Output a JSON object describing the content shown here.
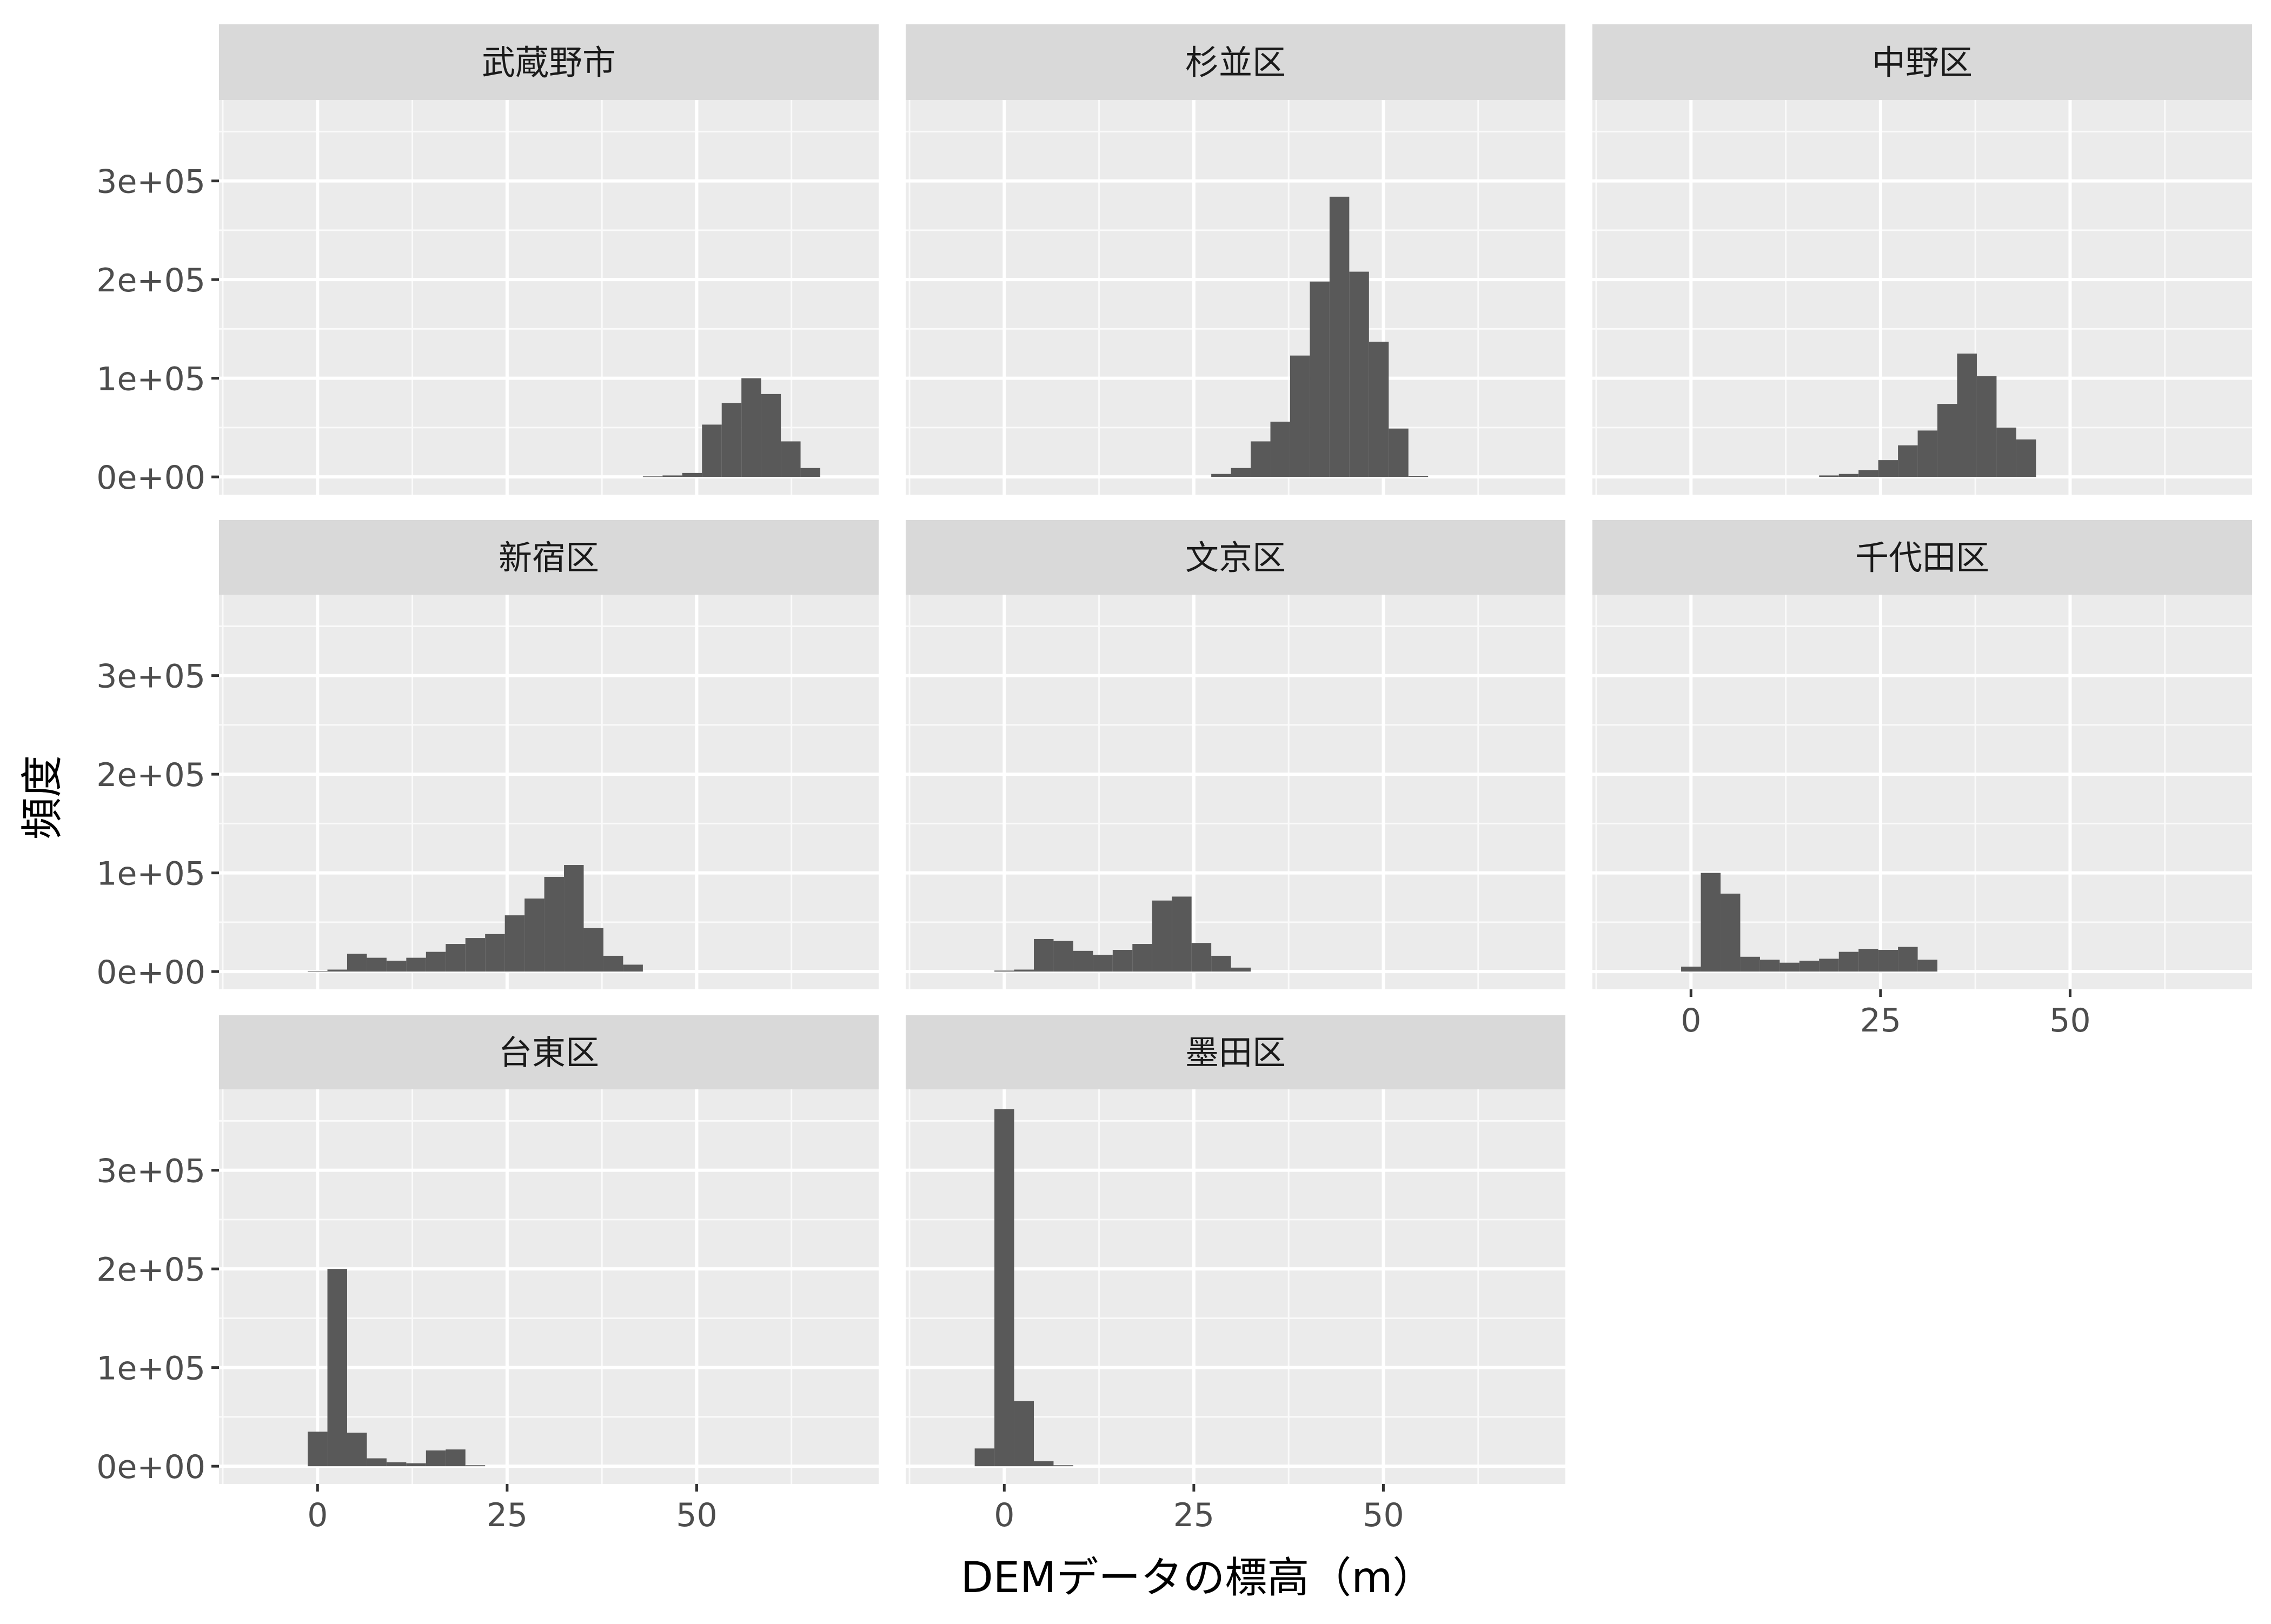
{
  "chart_data": {
    "type": "bar",
    "chart_kind": "histogram (faceted)",
    "xlabel": "DEMデータの標高（m）",
    "ylabel": "頻度",
    "xlim": [
      -13,
      74
    ],
    "ylim": [
      -18000,
      382000
    ],
    "x_ticks": [
      0,
      25,
      50
    ],
    "x_tick_labels": [
      "0",
      "25",
      "50"
    ],
    "y_ticks": [
      0,
      100000,
      200000,
      300000
    ],
    "y_tick_labels": [
      "0e+00",
      "1e+05",
      "2e+05",
      "3e+05"
    ],
    "bin_width": 2.6,
    "bar_color": "#595959",
    "panel_background": "#ebebeb",
    "strip_background": "#d9d9d9",
    "grid": true,
    "facets": [
      {
        "title": "武蔵野市",
        "bins": [
          {
            "x": 44.2,
            "y": 500
          },
          {
            "x": 46.8,
            "y": 1500
          },
          {
            "x": 49.4,
            "y": 4000
          },
          {
            "x": 52.0,
            "y": 53000
          },
          {
            "x": 54.6,
            "y": 75000
          },
          {
            "x": 57.2,
            "y": 100000
          },
          {
            "x": 59.8,
            "y": 84000
          },
          {
            "x": 62.4,
            "y": 36000
          },
          {
            "x": 65.0,
            "y": 9000
          }
        ]
      },
      {
        "title": "杉並区",
        "bins": [
          {
            "x": 28.6,
            "y": 3000
          },
          {
            "x": 31.2,
            "y": 9000
          },
          {
            "x": 33.8,
            "y": 36000
          },
          {
            "x": 36.4,
            "y": 56000
          },
          {
            "x": 39.0,
            "y": 123000
          },
          {
            "x": 41.6,
            "y": 198000
          },
          {
            "x": 44.2,
            "y": 284000
          },
          {
            "x": 46.8,
            "y": 208000
          },
          {
            "x": 49.4,
            "y": 137000
          },
          {
            "x": 52.0,
            "y": 49000
          },
          {
            "x": 54.6,
            "y": 1000
          }
        ]
      },
      {
        "title": "中野区",
        "bins": [
          {
            "x": 18.2,
            "y": 1500
          },
          {
            "x": 20.8,
            "y": 3000
          },
          {
            "x": 23.4,
            "y": 7000
          },
          {
            "x": 26.0,
            "y": 17000
          },
          {
            "x": 28.6,
            "y": 32000
          },
          {
            "x": 31.2,
            "y": 47000
          },
          {
            "x": 33.8,
            "y": 74000
          },
          {
            "x": 36.4,
            "y": 125000
          },
          {
            "x": 39.0,
            "y": 102000
          },
          {
            "x": 41.6,
            "y": 50000
          },
          {
            "x": 44.2,
            "y": 38000
          }
        ]
      },
      {
        "title": "新宿区",
        "bins": [
          {
            "x": 0.0,
            "y": 500
          },
          {
            "x": 2.6,
            "y": 2000
          },
          {
            "x": 5.2,
            "y": 18000
          },
          {
            "x": 7.8,
            "y": 14000
          },
          {
            "x": 10.4,
            "y": 11000
          },
          {
            "x": 13.0,
            "y": 14000
          },
          {
            "x": 15.6,
            "y": 20000
          },
          {
            "x": 18.2,
            "y": 28000
          },
          {
            "x": 20.8,
            "y": 34000
          },
          {
            "x": 23.4,
            "y": 38000
          },
          {
            "x": 26.0,
            "y": 57000
          },
          {
            "x": 28.6,
            "y": 74000
          },
          {
            "x": 31.2,
            "y": 96000
          },
          {
            "x": 33.8,
            "y": 108000
          },
          {
            "x": 36.4,
            "y": 44000
          },
          {
            "x": 39.0,
            "y": 16000
          },
          {
            "x": 41.6,
            "y": 7000
          }
        ]
      },
      {
        "title": "文京区",
        "bins": [
          {
            "x": 0.0,
            "y": 1000
          },
          {
            "x": 2.6,
            "y": 2000
          },
          {
            "x": 5.2,
            "y": 33000
          },
          {
            "x": 7.8,
            "y": 31000
          },
          {
            "x": 10.4,
            "y": 21000
          },
          {
            "x": 13.0,
            "y": 17000
          },
          {
            "x": 15.6,
            "y": 22000
          },
          {
            "x": 18.2,
            "y": 28000
          },
          {
            "x": 20.8,
            "y": 72000
          },
          {
            "x": 23.4,
            "y": 76000
          },
          {
            "x": 26.0,
            "y": 29000
          },
          {
            "x": 28.6,
            "y": 16000
          },
          {
            "x": 31.2,
            "y": 4000
          }
        ]
      },
      {
        "title": "千代田区",
        "bins": [
          {
            "x": 0.0,
            "y": 5000
          },
          {
            "x": 2.6,
            "y": 100000
          },
          {
            "x": 5.2,
            "y": 79000
          },
          {
            "x": 7.8,
            "y": 15000
          },
          {
            "x": 10.4,
            "y": 12000
          },
          {
            "x": 13.0,
            "y": 9000
          },
          {
            "x": 15.6,
            "y": 11000
          },
          {
            "x": 18.2,
            "y": 13000
          },
          {
            "x": 20.8,
            "y": 20000
          },
          {
            "x": 23.4,
            "y": 23000
          },
          {
            "x": 26.0,
            "y": 22000
          },
          {
            "x": 28.6,
            "y": 25000
          },
          {
            "x": 31.2,
            "y": 12000
          }
        ]
      },
      {
        "title": "台東区",
        "bins": [
          {
            "x": 0.0,
            "y": 35000
          },
          {
            "x": 2.6,
            "y": 200000
          },
          {
            "x": 5.2,
            "y": 34000
          },
          {
            "x": 7.8,
            "y": 8000
          },
          {
            "x": 10.4,
            "y": 4000
          },
          {
            "x": 13.0,
            "y": 3000
          },
          {
            "x": 15.6,
            "y": 16000
          },
          {
            "x": 18.2,
            "y": 17000
          },
          {
            "x": 20.8,
            "y": 1000
          }
        ]
      },
      {
        "title": "墨田区",
        "bins": [
          {
            "x": -2.6,
            "y": 18000
          },
          {
            "x": 0.0,
            "y": 362000
          },
          {
            "x": 2.6,
            "y": 66000
          },
          {
            "x": 5.2,
            "y": 5000
          },
          {
            "x": 7.8,
            "y": 1000
          }
        ]
      }
    ]
  }
}
